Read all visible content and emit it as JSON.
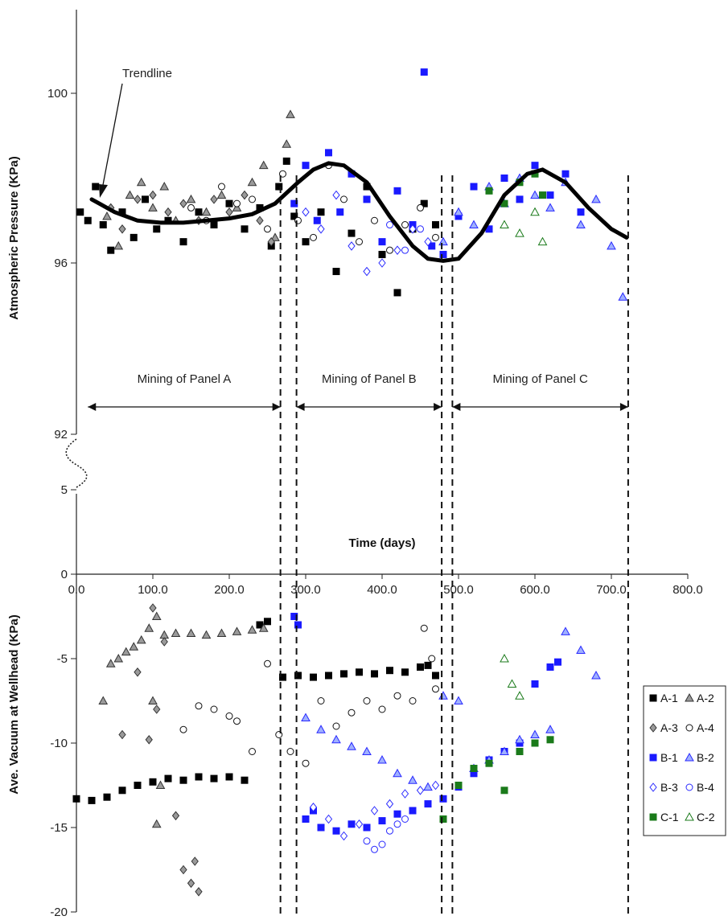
{
  "chart_data": [
    {
      "type": "scatter",
      "panel": "top",
      "ylabel": "Atmospheric Pressure (KPa)",
      "yticks": [
        "100",
        "96",
        "92"
      ],
      "ylim": [
        92,
        102
      ],
      "xlim": [
        0,
        800
      ],
      "trendline_label": "Trendline",
      "trendline": {
        "x": [
          20,
          50,
          80,
          110,
          140,
          170,
          200,
          230,
          260,
          290,
          310,
          330,
          350,
          380,
          410,
          440,
          460,
          480,
          500,
          530,
          560,
          590,
          610,
          640,
          670,
          700,
          720
        ],
        "y": [
          97.5,
          97.2,
          97.0,
          96.95,
          96.95,
          97.0,
          97.05,
          97.15,
          97.4,
          97.9,
          98.2,
          98.35,
          98.3,
          97.9,
          97.1,
          96.4,
          96.1,
          96.05,
          96.1,
          96.7,
          97.6,
          98.1,
          98.2,
          97.9,
          97.3,
          96.8,
          96.6
        ]
      },
      "periods": [
        {
          "label": "Mining of Panel A",
          "x0": 15,
          "x1": 267
        },
        {
          "label": "Mining of Panel B",
          "x0": 288,
          "x1": 478
        },
        {
          "label": "Mining of Panel C",
          "x0": 492,
          "x1": 722
        }
      ],
      "series": [
        {
          "name": "A-1",
          "x": [
            5,
            15,
            25,
            35,
            45,
            60,
            75,
            90,
            105,
            120,
            140,
            160,
            180,
            200,
            220,
            240,
            255,
            265,
            275,
            285,
            300,
            320,
            340,
            360,
            380,
            400,
            420,
            440,
            455,
            470
          ],
          "y": [
            97.2,
            97.0,
            97.8,
            96.9,
            96.3,
            97.2,
            96.6,
            97.5,
            96.8,
            97.0,
            96.5,
            97.2,
            96.9,
            97.4,
            96.8,
            97.3,
            96.4,
            97.8,
            98.4,
            97.1,
            96.5,
            97.2,
            95.8,
            96.7,
            97.8,
            96.2,
            95.3,
            96.8,
            97.4,
            96.9
          ]
        },
        {
          "name": "A-2",
          "x": [
            40,
            55,
            70,
            85,
            100,
            115,
            130,
            150,
            170,
            190,
            210,
            230,
            245,
            260,
            275,
            280
          ],
          "y": [
            97.1,
            96.4,
            97.6,
            97.9,
            97.3,
            97.8,
            97.0,
            97.5,
            97.2,
            97.6,
            97.3,
            97.9,
            98.3,
            96.6,
            98.8,
            99.5
          ]
        },
        {
          "name": "A-3",
          "x": [
            45,
            60,
            80,
            100,
            120,
            140,
            160,
            180,
            200,
            220,
            240,
            255
          ],
          "y": [
            97.3,
            96.8,
            97.5,
            97.6,
            97.2,
            97.4,
            97.0,
            97.5,
            97.2,
            97.6,
            97.0,
            96.5
          ]
        },
        {
          "name": "A-4",
          "x": [
            150,
            170,
            190,
            210,
            230,
            250,
            270,
            290,
            310,
            330,
            350,
            370,
            390,
            410,
            430,
            450,
            470
          ],
          "y": [
            97.3,
            97.0,
            97.8,
            97.4,
            97.5,
            96.8,
            98.1,
            97.0,
            96.6,
            98.3,
            97.5,
            96.5,
            97.0,
            96.3,
            96.9,
            97.3,
            96.6
          ]
        },
        {
          "name": "B-1",
          "x": [
            285,
            300,
            315,
            330,
            345,
            360,
            380,
            400,
            420,
            440,
            455,
            465,
            480,
            500,
            520,
            540,
            560,
            580,
            600,
            620,
            640,
            660
          ],
          "y": [
            97.4,
            98.3,
            97.0,
            98.6,
            97.2,
            98.1,
            97.5,
            96.5,
            97.7,
            96.9,
            100.5,
            96.4,
            96.2,
            97.1,
            97.8,
            96.8,
            98.0,
            97.5,
            98.3,
            97.6,
            98.1,
            97.2
          ]
        },
        {
          "name": "B-2",
          "x": [
            480,
            500,
            520,
            540,
            560,
            580,
            600,
            620,
            640,
            660,
            680,
            700,
            715
          ],
          "y": [
            96.5,
            97.2,
            96.9,
            97.8,
            97.4,
            98.0,
            97.6,
            97.3,
            97.9,
            96.9,
            97.5,
            96.4,
            95.2
          ]
        },
        {
          "name": "B-3",
          "x": [
            300,
            320,
            340,
            360,
            380,
            400,
            420,
            440,
            460
          ],
          "y": [
            97.2,
            96.8,
            97.6,
            96.4,
            95.8,
            96.0,
            96.3,
            96.8,
            96.5
          ]
        },
        {
          "name": "B-4",
          "x": [
            410,
            430,
            450
          ],
          "y": [
            96.9,
            96.3,
            96.8
          ]
        },
        {
          "name": "C-1",
          "x": [
            540,
            560,
            580,
            600,
            610
          ],
          "y": [
            97.7,
            97.4,
            97.9,
            98.1,
            97.6
          ]
        },
        {
          "name": "C-2",
          "x": [
            560,
            580,
            600,
            610
          ],
          "y": [
            96.9,
            96.7,
            97.2,
            96.5
          ]
        }
      ]
    },
    {
      "type": "scatter",
      "panel": "bottom",
      "xlabel": "Time (days)",
      "ylabel": "Ave. Vacuum at Wellhead (KPa)",
      "xticks": [
        "0.0",
        "100.0",
        "200.0",
        "300.0",
        "400.0",
        "500.0",
        "600.0",
        "700.0",
        "800.0"
      ],
      "yticks": [
        "5",
        "0",
        "-5",
        "-10",
        "-15",
        "-20"
      ],
      "xlim": [
        0,
        800
      ],
      "ylim": [
        -20,
        5
      ],
      "grid": false,
      "legend_position": "right",
      "series": [
        {
          "name": "A-1",
          "x": [
            0,
            20,
            40,
            60,
            80,
            100,
            120,
            140,
            160,
            180,
            200,
            220,
            240,
            250,
            270,
            290,
            310,
            330,
            350,
            370,
            390,
            410,
            430,
            450,
            460,
            470
          ],
          "y": [
            -13.3,
            -13.4,
            -13.2,
            -12.8,
            -12.5,
            -12.3,
            -12.1,
            -12.2,
            -12.0,
            -12.1,
            -12.0,
            -12.2,
            -3.0,
            -2.8,
            -6.1,
            -6.0,
            -6.1,
            -6.0,
            -5.9,
            -5.8,
            -5.9,
            -5.7,
            -5.8,
            -5.5,
            -5.4,
            -6.0
          ]
        },
        {
          "name": "A-2",
          "x": [
            35,
            45,
            55,
            65,
            75,
            85,
            95,
            105,
            115,
            130,
            150,
            170,
            190,
            210,
            230,
            245,
            100,
            110,
            105
          ],
          "y": [
            -7.5,
            -5.3,
            -5.0,
            -4.6,
            -4.3,
            -3.9,
            -3.2,
            -2.5,
            -3.6,
            -3.5,
            -3.5,
            -3.6,
            -3.5,
            -3.4,
            -3.3,
            -3.2,
            -7.5,
            -12.5,
            -14.8
          ]
        },
        {
          "name": "A-3",
          "x": [
            60,
            80,
            100,
            115,
            130,
            140,
            150,
            155,
            160,
            105,
            95
          ],
          "y": [
            -9.5,
            -5.8,
            -2.0,
            -4.0,
            -14.3,
            -17.5,
            -18.3,
            -17.0,
            -18.8,
            -8.0,
            -9.8
          ]
        },
        {
          "name": "A-4",
          "x": [
            140,
            160,
            180,
            200,
            210,
            230,
            250,
            265,
            280,
            300,
            320,
            340,
            360,
            380,
            400,
            420,
            440,
            455,
            465,
            470
          ],
          "y": [
            -9.2,
            -7.8,
            -8.0,
            -8.4,
            -8.7,
            -10.5,
            -5.3,
            -9.5,
            -10.5,
            -11.2,
            -7.5,
            -9.0,
            -8.2,
            -7.5,
            -8.0,
            -7.2,
            -7.5,
            -3.2,
            -5.0,
            -6.8
          ]
        },
        {
          "name": "B-1",
          "x": [
            285,
            290,
            300,
            310,
            320,
            340,
            360,
            380,
            400,
            420,
            440,
            460,
            480,
            500,
            520,
            540,
            560,
            580,
            600,
            620,
            630
          ],
          "y": [
            -2.5,
            -3.0,
            -14.5,
            -14.0,
            -15.0,
            -15.2,
            -14.8,
            -15.0,
            -14.6,
            -14.2,
            -14.0,
            -13.6,
            -13.3,
            -12.6,
            -11.8,
            -11.0,
            -10.5,
            -10.0,
            -6.5,
            -5.5,
            -5.2
          ]
        },
        {
          "name": "B-2",
          "x": [
            300,
            320,
            340,
            360,
            380,
            400,
            420,
            440,
            460,
            480,
            500,
            520,
            540,
            560,
            580,
            600,
            620,
            640,
            660,
            680
          ],
          "y": [
            -8.5,
            -9.2,
            -9.8,
            -10.2,
            -10.5,
            -11.0,
            -11.8,
            -12.2,
            -12.6,
            -7.2,
            -7.5,
            -11.5,
            -11.0,
            -10.5,
            -9.8,
            -9.5,
            -9.2,
            -3.4,
            -4.5,
            -6.0
          ]
        },
        {
          "name": "B-3",
          "x": [
            310,
            330,
            350,
            370,
            390,
            410,
            430,
            450,
            470
          ],
          "y": [
            -13.8,
            -14.5,
            -15.5,
            -14.8,
            -14.0,
            -13.6,
            -13.0,
            -12.8,
            -12.5
          ]
        },
        {
          "name": "B-4",
          "x": [
            380,
            390,
            400,
            410,
            420,
            430
          ],
          "y": [
            -15.8,
            -16.3,
            -16.0,
            -15.2,
            -14.8,
            -14.5
          ]
        },
        {
          "name": "C-1",
          "x": [
            480,
            500,
            520,
            540,
            560,
            580,
            600,
            620
          ],
          "y": [
            -14.5,
            -12.5,
            -11.5,
            -11.2,
            -12.8,
            -10.5,
            -10.0,
            -9.8
          ]
        },
        {
          "name": "C-2",
          "x": [
            560,
            570,
            580
          ],
          "y": [
            -5.0,
            -6.5,
            -7.2
          ]
        }
      ]
    }
  ],
  "legend": {
    "items": [
      {
        "label": "A-1",
        "marker": "square",
        "color": "#000000"
      },
      {
        "label": "A-2",
        "marker": "triangle",
        "color": "#9a9a9a"
      },
      {
        "label": "A-3",
        "marker": "diamond",
        "color": "#9a9a9a"
      },
      {
        "label": "A-4",
        "marker": "circle",
        "color": "#ffffff"
      },
      {
        "label": "B-1",
        "marker": "square",
        "color": "#1a1aff"
      },
      {
        "label": "B-2",
        "marker": "triangle",
        "color": "#8aa0ff"
      },
      {
        "label": "B-3",
        "marker": "diamond",
        "color": "#ffffff"
      },
      {
        "label": "B-4",
        "marker": "circle",
        "color": "#ffffff"
      },
      {
        "label": "C-1",
        "marker": "square",
        "color": "#1a7a1a"
      },
      {
        "label": "C-2",
        "marker": "triangle",
        "color": "#ffffff"
      }
    ]
  },
  "colors": {
    "black_series": "#000000",
    "gray_series": "#9a9a9a",
    "blue_series": "#1a1aff",
    "blue_outline": "#2a2aff",
    "green_series": "#1a7a1a"
  }
}
